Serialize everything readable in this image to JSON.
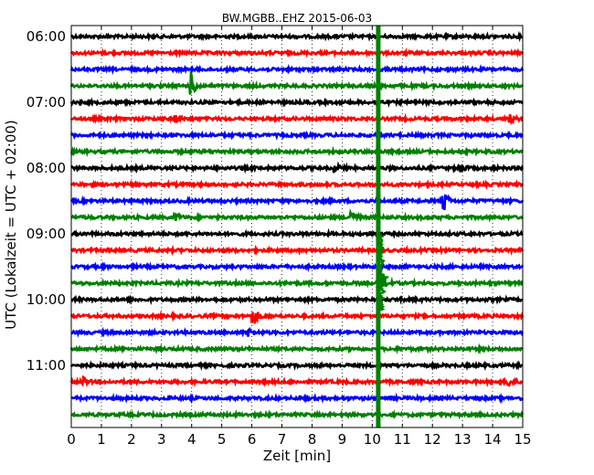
{
  "chart_data": {
    "type": "line",
    "title": "BW.MGBB..EHZ 2015-06-03",
    "xlabel": "Zeit  [min]",
    "ylabel": "UTC (Lokalzeit = UTC + 02:00)",
    "xlim": [
      0,
      15
    ],
    "x_ticks": [
      "0",
      "1",
      "2",
      "3",
      "4",
      "5",
      "6",
      "7",
      "8",
      "9",
      "10",
      "11",
      "12",
      "13",
      "14",
      "15"
    ],
    "y_tick_labels": [
      "06:00",
      "07:00",
      "08:00",
      "09:00",
      "10:00",
      "11:00"
    ],
    "grid": "vertical dotted",
    "trace_interval_min": 15,
    "trace_colors": [
      "#000000",
      "#ff0000",
      "#0000ff",
      "#008000"
    ],
    "traces": [
      {
        "start": "06:00",
        "events": []
      },
      {
        "start": "06:15",
        "events": []
      },
      {
        "start": "06:30",
        "events": []
      },
      {
        "start": "06:45",
        "events": [
          {
            "t": 4.0,
            "amp": 14
          }
        ]
      },
      {
        "start": "07:00",
        "events": []
      },
      {
        "start": "07:15",
        "events": [
          {
            "t": 3.45,
            "amp": 5
          },
          {
            "t": 14.55,
            "amp": 5
          }
        ]
      },
      {
        "start": "07:30",
        "events": []
      },
      {
        "start": "07:45",
        "events": []
      },
      {
        "start": "08:00",
        "events": [
          {
            "t": 8.75,
            "amp": 5
          },
          {
            "t": 12.9,
            "amp": 6
          }
        ]
      },
      {
        "start": "08:15",
        "events": []
      },
      {
        "start": "08:30",
        "events": [
          {
            "t": 12.35,
            "amp": 16
          }
        ]
      },
      {
        "start": "08:45",
        "events": [
          {
            "t": 3.45,
            "amp": 5
          },
          {
            "t": 9.3,
            "amp": 12
          }
        ]
      },
      {
        "start": "09:00",
        "events": [
          {
            "t": 9.9,
            "amp": 3
          }
        ]
      },
      {
        "start": "09:15",
        "events": []
      },
      {
        "start": "09:30",
        "events": []
      },
      {
        "start": "09:45",
        "events": [
          {
            "t": 10.3,
            "amp": 12
          }
        ]
      },
      {
        "start": "10:00",
        "events": []
      },
      {
        "start": "10:15",
        "events": [
          {
            "t": 6.05,
            "amp": 12
          }
        ]
      },
      {
        "start": "10:30",
        "events": [
          {
            "t": 5.9,
            "amp": 5
          }
        ]
      },
      {
        "start": "10:45",
        "events": []
      },
      {
        "start": "11:00",
        "events": []
      },
      {
        "start": "11:15",
        "events": [
          {
            "t": 0.35,
            "amp": 6
          },
          {
            "t": 14.5,
            "amp": 6
          }
        ]
      },
      {
        "start": "11:30",
        "events": []
      },
      {
        "start": "11:45",
        "events": []
      }
    ],
    "vertical_event": {
      "t": 10.2,
      "color": "#008000"
    }
  }
}
